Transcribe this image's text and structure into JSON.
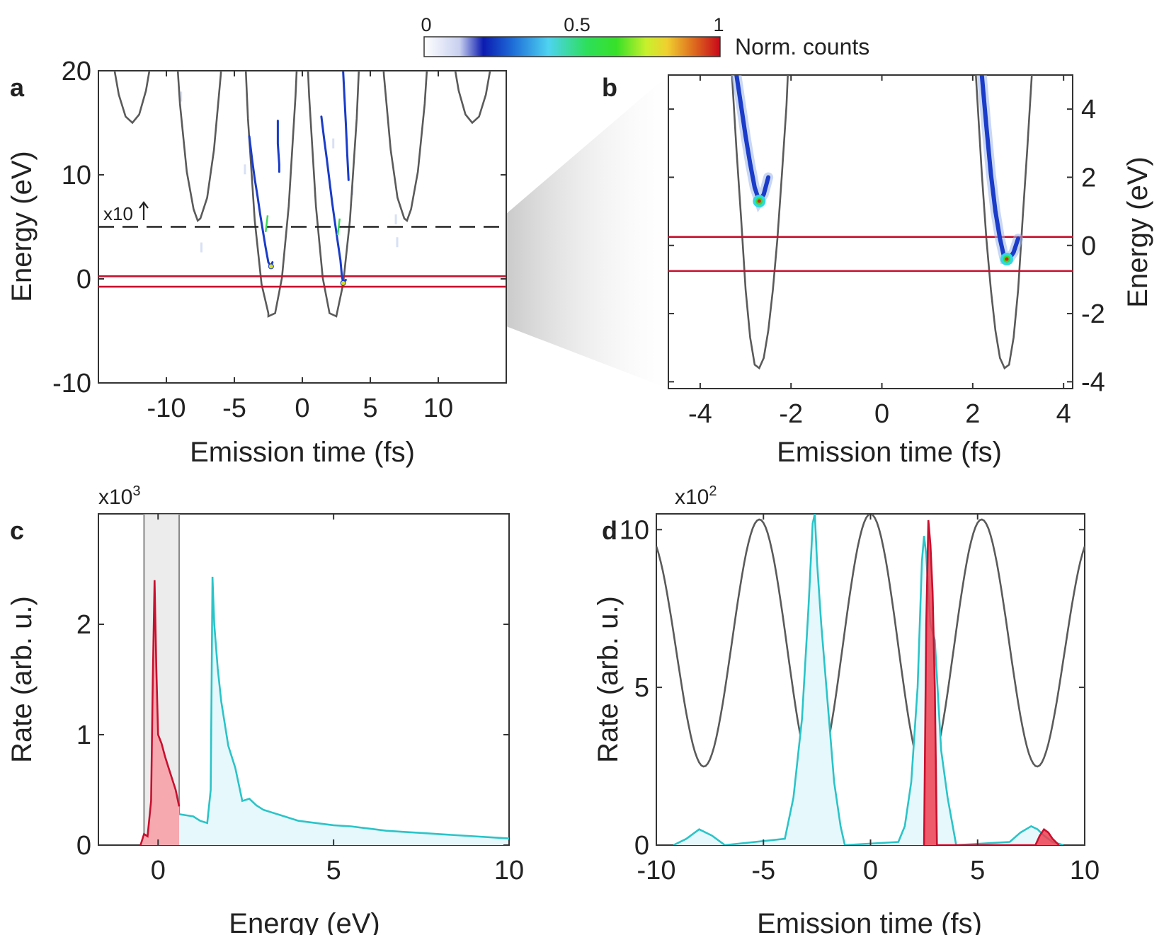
{
  "colorbar": {
    "ticks": [
      "0",
      "0.5",
      "1"
    ],
    "label": "Norm. counts"
  },
  "colors": {
    "red": "#c8102e",
    "cyan": "#2ac4c8",
    "gray": "#5a5a5a",
    "blue": "#1a3cc8",
    "red_fill": "#f7a9b0",
    "cyan_fill": "#e6f8fb",
    "band": "#ececec"
  },
  "chart_data": [
    {
      "panel": "a",
      "type": "heatmap",
      "xlabel": "Emission time (fs)",
      "ylabel": "Energy (eV)",
      "xlim": [
        -15,
        15
      ],
      "ylim": [
        -10,
        20
      ],
      "xticks": [
        -10,
        -5,
        0,
        5,
        10
      ],
      "yticks": [
        -10,
        0,
        10,
        20
      ],
      "annotation": "x10",
      "dashed_line_energy": 5,
      "red_lines_energy": [
        0.25,
        -0.75
      ],
      "gray_curve": [
        [
          -15.0,
          36.2
        ],
        [
          -14.5,
          26.9
        ],
        [
          -14.0,
          21.4
        ],
        [
          -13.5,
          17.7
        ],
        [
          -13.0,
          15.6
        ],
        [
          -12.5,
          15.0
        ],
        [
          -12.0,
          15.8
        ],
        [
          -11.5,
          18.1
        ],
        [
          -11.0,
          21.9
        ],
        [
          -10.5,
          27.4
        ],
        [
          -10.0,
          34.6
        ],
        [
          -9.5,
          26.8
        ],
        [
          -9.0,
          16.8
        ],
        [
          -8.5,
          10.3
        ],
        [
          -8.0,
          6.7
        ],
        [
          -7.7,
          5.6
        ],
        [
          -7.5,
          5.8
        ],
        [
          -7.0,
          7.8
        ],
        [
          -6.5,
          12.4
        ],
        [
          -6.0,
          19.6
        ],
        [
          -5.5,
          29.7
        ],
        [
          -5.0,
          43.3
        ],
        [
          -4.5,
          30.1
        ],
        [
          -4.0,
          15.4
        ],
        [
          -3.5,
          5.6
        ],
        [
          -3.0,
          -0.5
        ],
        [
          -2.5,
          -3.3
        ],
        [
          -2.5,
          -3.6
        ],
        [
          -2.0,
          -3.3
        ],
        [
          -1.5,
          0.1
        ],
        [
          -1.0,
          7.0
        ],
        [
          -0.5,
          17.6
        ],
        [
          0.0,
          32.0
        ],
        [
          0.5,
          17.6
        ],
        [
          1.0,
          7.0
        ],
        [
          1.5,
          0.1
        ],
        [
          2.0,
          -3.3
        ],
        [
          2.5,
          -3.6
        ],
        [
          3.0,
          -0.5
        ],
        [
          3.5,
          5.6
        ],
        [
          4.0,
          15.4
        ],
        [
          4.5,
          30.1
        ],
        [
          5.0,
          43.3
        ],
        [
          5.5,
          29.7
        ],
        [
          6.0,
          19.6
        ],
        [
          6.5,
          12.4
        ],
        [
          7.0,
          7.8
        ],
        [
          7.5,
          5.8
        ],
        [
          7.7,
          5.6
        ],
        [
          8.0,
          6.7
        ],
        [
          8.5,
          10.3
        ],
        [
          9.0,
          16.8
        ],
        [
          9.5,
          26.8
        ],
        [
          10.0,
          34.6
        ],
        [
          10.5,
          27.4
        ],
        [
          11.0,
          21.9
        ],
        [
          11.5,
          18.1
        ],
        [
          12.0,
          15.8
        ],
        [
          12.5,
          15.0
        ],
        [
          13.0,
          15.6
        ],
        [
          13.5,
          17.7
        ],
        [
          14.0,
          21.4
        ],
        [
          14.5,
          26.9
        ],
        [
          15.0,
          36.2
        ]
      ],
      "traces": [
        [
          [
            -3.9,
            13.7
          ],
          [
            -3.7,
            11.5
          ],
          [
            -3.5,
            9.6
          ],
          [
            -3.3,
            8.0
          ],
          [
            -3.1,
            6.2
          ],
          [
            -2.9,
            4.6
          ],
          [
            -2.7,
            3.0
          ],
          [
            -2.5,
            1.6
          ],
          [
            -2.3,
            1.2
          ],
          [
            -2.2,
            1.6
          ]
        ],
        [
          [
            -1.8,
            15.2
          ],
          [
            -1.8,
            13.0
          ],
          [
            -1.7,
            11.0
          ],
          [
            -1.7,
            10.3
          ]
        ],
        [
          [
            1.4,
            15.6
          ],
          [
            1.6,
            13.5
          ],
          [
            1.8,
            11.5
          ],
          [
            2.0,
            9.4
          ],
          [
            2.2,
            7.3
          ],
          [
            2.4,
            5.4
          ],
          [
            2.6,
            3.6
          ],
          [
            2.8,
            1.8
          ],
          [
            2.9,
            0.4
          ],
          [
            3.0,
            -0.4
          ],
          [
            3.2,
            -0.1
          ]
        ],
        [
          [
            3.0,
            20.0
          ],
          [
            3.1,
            17.5
          ],
          [
            3.2,
            15.0
          ],
          [
            3.3,
            12.0
          ],
          [
            3.4,
            9.5
          ]
        ]
      ]
    },
    {
      "panel": "b",
      "type": "heatmap",
      "xlabel": "Emission time (fs)",
      "ylabel": "Energy (eV)",
      "xlim": [
        -4.7,
        4.2
      ],
      "ylim": [
        -4.2,
        5
      ],
      "xticks": [
        -4,
        -2,
        0,
        2,
        4
      ],
      "yticks": [
        -4,
        -2,
        0,
        2,
        4
      ],
      "red_lines_energy": [
        0.25,
        -0.75
      ],
      "gray_curve": [
        [
          -3.3,
          5.0
        ],
        [
          -3.2,
          2.8
        ],
        [
          -3.1,
          0.8
        ],
        [
          -3.0,
          -1.3
        ],
        [
          -2.9,
          -2.7
        ],
        [
          -2.8,
          -3.5
        ],
        [
          -2.7,
          -3.6
        ],
        [
          -2.6,
          -3.3
        ],
        [
          -2.5,
          -2.5
        ],
        [
          -2.4,
          -1.3
        ],
        [
          -2.3,
          0.2
        ],
        [
          -2.2,
          2.1
        ],
        [
          -2.1,
          4.1
        ],
        [
          -2.07,
          5.0
        ]
      ],
      "gray_curve_right": [
        [
          2.07,
          5.0
        ],
        [
          2.2,
          2.1
        ],
        [
          2.3,
          0.2
        ],
        [
          2.4,
          -1.3
        ],
        [
          2.5,
          -2.5
        ],
        [
          2.6,
          -3.3
        ],
        [
          2.7,
          -3.6
        ],
        [
          2.8,
          -3.5
        ],
        [
          2.9,
          -2.7
        ],
        [
          3.0,
          -1.3
        ],
        [
          3.1,
          0.8
        ],
        [
          3.2,
          2.8
        ],
        [
          3.3,
          5.0
        ]
      ],
      "traces": [
        [
          [
            -3.2,
            5.0
          ],
          [
            -3.1,
            4.1
          ],
          [
            -3.0,
            3.2
          ],
          [
            -2.9,
            2.4
          ],
          [
            -2.8,
            1.7
          ],
          [
            -2.7,
            1.3
          ],
          [
            -2.6,
            1.5
          ],
          [
            -2.5,
            2.0
          ]
        ],
        [
          [
            2.2,
            5.0
          ],
          [
            2.3,
            3.5
          ],
          [
            2.4,
            2.1
          ],
          [
            2.5,
            1.0
          ],
          [
            2.6,
            0.2
          ],
          [
            2.7,
            -0.4
          ],
          [
            2.8,
            -0.4
          ],
          [
            2.9,
            -0.2
          ],
          [
            3.0,
            0.2
          ]
        ]
      ]
    },
    {
      "panel": "c",
      "type": "area",
      "xlabel": "Energy (eV)",
      "ylabel": "Rate (arb. u.)",
      "exponent_label": "x10",
      "exponent": "3",
      "xlim": [
        -1.7,
        10
      ],
      "ylim": [
        0,
        3
      ],
      "xticks": [
        0,
        5,
        10
      ],
      "yticks": [
        0,
        1,
        2
      ],
      "band": [
        -0.4,
        0.6
      ],
      "series": [
        {
          "name": "red",
          "x": [
            -0.5,
            -0.4,
            -0.3,
            -0.2,
            -0.15,
            -0.1,
            -0.05,
            0.0,
            0.1,
            0.2,
            0.3,
            0.4,
            0.5,
            0.6
          ],
          "y": [
            0.0,
            0.1,
            0.08,
            0.4,
            1.5,
            2.4,
            1.6,
            1.0,
            0.92,
            0.8,
            0.7,
            0.6,
            0.5,
            0.35
          ]
        },
        {
          "name": "cyan",
          "x": [
            0.6,
            0.8,
            1.0,
            1.2,
            1.4,
            1.5,
            1.55,
            1.6,
            1.7,
            1.8,
            2.0,
            2.2,
            2.4,
            2.6,
            2.8,
            3.0,
            3.5,
            4.0,
            4.5,
            5.0,
            5.5,
            6.0,
            6.5,
            7.0,
            7.5,
            8.0,
            8.5,
            9.0,
            9.5,
            10.0
          ],
          "y": [
            0.28,
            0.27,
            0.26,
            0.22,
            0.2,
            0.5,
            2.43,
            2.0,
            1.6,
            1.3,
            0.9,
            0.7,
            0.4,
            0.42,
            0.36,
            0.32,
            0.27,
            0.22,
            0.2,
            0.18,
            0.17,
            0.15,
            0.13,
            0.12,
            0.11,
            0.1,
            0.09,
            0.08,
            0.07,
            0.06
          ]
        }
      ]
    },
    {
      "panel": "d",
      "type": "line",
      "xlabel": "Emission time (fs)",
      "ylabel": "Rate (arb. u.)",
      "exponent_label": "x10",
      "exponent": "2",
      "xlim": [
        -10,
        10
      ],
      "ylim": [
        0,
        10.5
      ],
      "xticks": [
        -10,
        -5,
        0,
        5,
        10
      ],
      "yticks": [
        0,
        5,
        10
      ],
      "field_curve": {
        "center": 6.3,
        "amplitude": 4.2,
        "period_fs": 5.2,
        "envelope_width_fs": 25
      },
      "series": [
        {
          "name": "cyan",
          "x": [
            -9.2,
            -8.6,
            -8.0,
            -7.4,
            -6.8,
            -4.0,
            -3.6,
            -3.2,
            -2.9,
            -2.7,
            -2.6,
            -2.5,
            -2.3,
            -2.0,
            -1.7,
            -1.4,
            -1.2,
            1.3,
            1.6,
            1.9,
            2.2,
            2.4,
            2.5,
            2.6,
            2.7,
            2.8,
            3.0,
            3.3,
            3.6,
            4.0,
            6.5,
            7.0,
            7.5,
            7.8,
            8.1,
            8.5,
            9.0
          ],
          "y": [
            0,
            0.2,
            0.5,
            0.3,
            0,
            0.2,
            1.5,
            4.0,
            7.5,
            10.2,
            10.5,
            9.0,
            7.0,
            4.5,
            2.0,
            0.6,
            0,
            0.1,
            0.6,
            2.0,
            5.0,
            9.0,
            9.8,
            9.2,
            8.0,
            7.0,
            6.5,
            3.0,
            1.5,
            0,
            0.1,
            0.4,
            0.6,
            0.5,
            0.3,
            0.1,
            0
          ]
        },
        {
          "name": "red",
          "x": [
            2.5,
            2.6,
            2.7,
            2.8,
            2.9,
            3.0,
            3.1,
            7.7,
            7.9,
            8.1,
            8.3,
            8.5,
            8.8
          ],
          "y": [
            0,
            7.0,
            10.3,
            9.5,
            8.0,
            5.0,
            0,
            0,
            0.3,
            0.5,
            0.4,
            0.2,
            0
          ]
        }
      ]
    }
  ],
  "panel_labels": [
    "a",
    "b",
    "c",
    "d"
  ]
}
